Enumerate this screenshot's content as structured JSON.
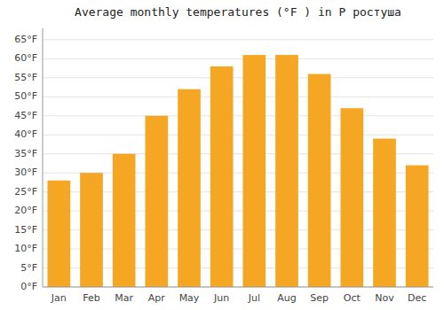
{
  "chart_data": {
    "type": "bar",
    "title": "Average monthly temperatures (°F ) in Р ростуша",
    "categories": [
      "Jan",
      "Feb",
      "Mar",
      "Apr",
      "May",
      "Jun",
      "Jul",
      "Aug",
      "Sep",
      "Oct",
      "Nov",
      "Dec"
    ],
    "values": [
      28,
      30,
      35,
      45,
      52,
      58,
      61,
      61,
      56,
      47,
      39,
      32
    ],
    "color": "#F5A623",
    "ylim": [
      0,
      68
    ],
    "yticks": [
      {
        "value": 0,
        "label": "0°F"
      },
      {
        "value": 5,
        "label": "5°F"
      },
      {
        "value": 10,
        "label": "10°F"
      },
      {
        "value": 15,
        "label": "15°F"
      },
      {
        "value": 20,
        "label": "20°F"
      },
      {
        "value": 25,
        "label": "25°F"
      },
      {
        "value": 30,
        "label": "30°F"
      },
      {
        "value": 35,
        "label": "35°F"
      },
      {
        "value": 40,
        "label": "40°F"
      },
      {
        "value": 45,
        "label": "45°F"
      },
      {
        "value": 50,
        "label": "50°F"
      },
      {
        "value": 55,
        "label": "55°F"
      },
      {
        "value": 60,
        "label": "60°F"
      },
      {
        "value": 65,
        "label": "65°F"
      }
    ],
    "grid": true
  }
}
